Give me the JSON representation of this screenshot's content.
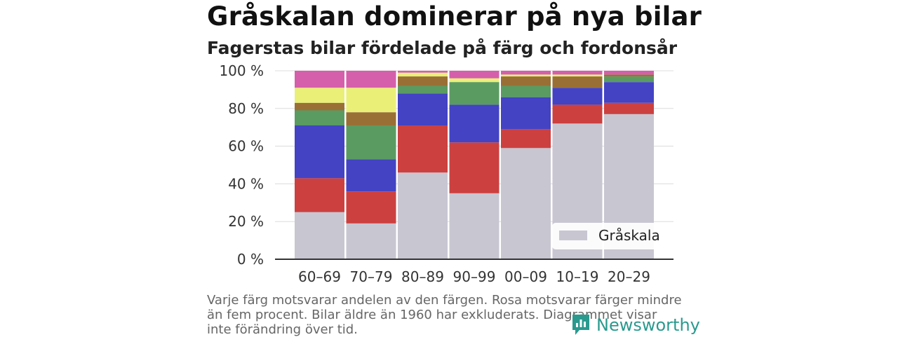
{
  "title": "Gråskalan dominerar på nya bilar",
  "subtitle": "Fagerstas bilar fördelade på färg och fordonsår",
  "footnote": "Varje färg motsvarar andelen av den färgen. Rosa motsvarar färger mindre än fem procent. Bilar äldre än 1960 har exkluderats. Diagrammet visar inte förändring över tid.",
  "logo": {
    "text": "Newsworthy",
    "icon": "newsworthy-logo-icon",
    "color": "#2a9a8f"
  },
  "chart_data": {
    "type": "bar",
    "stacked": true,
    "categories": [
      "60–69",
      "70–79",
      "80–89",
      "90–99",
      "00–09",
      "10–19",
      "20–29"
    ],
    "ylim": [
      0,
      100
    ],
    "yticks": [
      0,
      20,
      40,
      60,
      80,
      100
    ],
    "ytick_labels": [
      "0 %",
      "20 %",
      "40 %",
      "60 %",
      "80 %",
      "100 %"
    ],
    "grid": true,
    "legend": {
      "entries": [
        "Gråskala"
      ],
      "position": "bottom-right"
    },
    "series": [
      {
        "name": "Gråskala",
        "color": "#c8c6d1",
        "values": [
          25,
          19,
          46,
          35,
          59,
          72,
          77
        ]
      },
      {
        "color": "#cc4040",
        "values": [
          18,
          17,
          25,
          27,
          10,
          10,
          6
        ]
      },
      {
        "color": "#4343c4",
        "values": [
          28,
          17,
          17,
          20,
          17,
          9,
          11
        ]
      },
      {
        "color": "#5a9b62",
        "values": [
          8,
          18,
          4,
          12,
          6,
          0,
          3
        ]
      },
      {
        "color": "#9a6f35",
        "values": [
          4,
          7,
          5,
          0,
          5,
          6,
          1
        ]
      },
      {
        "color": "#eaef78",
        "values": [
          8,
          13,
          2,
          2,
          1,
          1,
          0
        ]
      },
      {
        "color": "#d55fab",
        "values": [
          9,
          9,
          1,
          4,
          2,
          2,
          2
        ]
      }
    ]
  }
}
